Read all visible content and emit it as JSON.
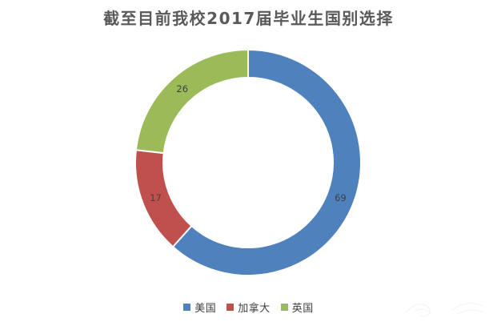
{
  "page": {
    "background": "#ffffff"
  },
  "chart_data": {
    "type": "pie",
    "subtype": "doughnut",
    "title": "截至目前我校2017届毕业生国别选择",
    "categories": [
      "美国",
      "加拿大",
      "英国"
    ],
    "values": [
      69,
      17,
      26
    ],
    "total": 112,
    "colors": [
      "#4F81BD",
      "#C0504D",
      "#9BBB59"
    ],
    "data_labels": [
      "69",
      "17",
      "26"
    ],
    "start_angle_deg": 0,
    "direction": "clockwise",
    "hole_ratio": 0.75,
    "slice_border_color": "#ffffff",
    "legend_position": "bottom",
    "legend": [
      {
        "label": "美国",
        "color": "#4F81BD"
      },
      {
        "label": "加拿大",
        "color": "#C0504D"
      },
      {
        "label": "英国",
        "color": "#9BBB59"
      }
    ]
  },
  "styles": {
    "title_color": "#595959",
    "data_label_color": "#404040",
    "legend_text_color": "#404040"
  }
}
